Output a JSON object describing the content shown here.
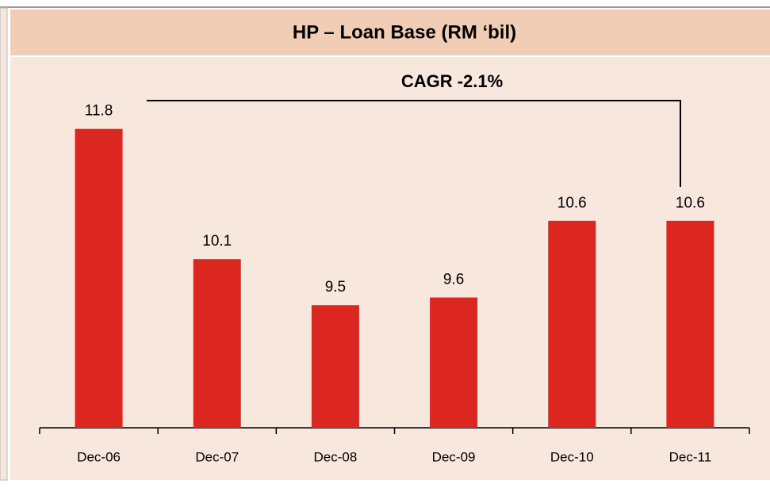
{
  "chart_data": {
    "type": "bar",
    "title": "HP – Loan Base (RM ‘bil)",
    "annotation": "CAGR -2.1%",
    "categories": [
      "Dec-06",
      "Dec-07",
      "Dec-08",
      "Dec-09",
      "Dec-10",
      "Dec-11"
    ],
    "values": [
      11.8,
      10.1,
      9.5,
      9.6,
      10.6,
      10.6
    ],
    "color": "#dc2620",
    "ylim": [
      7.9,
      12.5
    ]
  }
}
